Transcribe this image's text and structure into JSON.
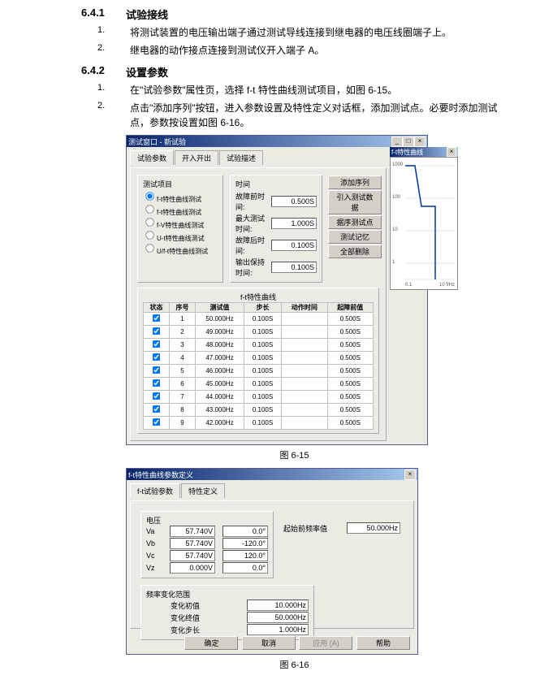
{
  "s641": {
    "no": "6.4.1",
    "title": "试验接线",
    "i1": "将测试装置的电压输出端子通过测试导线连接到继电器的电压线圈端子上。",
    "i2": "继电器的动作接点连接到测试仪开入端子 A。"
  },
  "s642": {
    "no": "6.4.2",
    "title": "设置参数",
    "i1": "在\"试验参数\"属性页，选择 f-t 特性曲线测试项目，如图 6-15。",
    "i2": "点击\"添加序列\"按钮，进入参数设置及特性定义对话框，添加测试点。必要时添加测试点，参数按设置如图 6-16。"
  },
  "cap615": "图 6-15",
  "cap616": "图 6-16",
  "w615": {
    "title": "测试窗口 - 新试验",
    "tab1": "试验参数",
    "tab2": "开入开出",
    "tab3": "试验描述",
    "items_h": "测试项目",
    "time_h": "时间",
    "items": [
      "f-t特性曲线测试",
      "f-t特性曲线测试",
      "f-V特性曲线测试",
      "U-t特性曲线测试",
      "U/f-t特性曲线测试"
    ],
    "lbl1": "故障前时间:",
    "lbl2": "最大测试时间:",
    "lbl3": "故障后时间:",
    "lbl4": "输出保持时间:",
    "v1": "0.500S",
    "v2": "1.000S",
    "v3": "0.100S",
    "v4": "0.100S",
    "btns": [
      "添加序列",
      "引入测试数据",
      "据序测试点",
      "测试记忆",
      "全部删除"
    ],
    "curve_t": "f-t特性曲线",
    "th": [
      "状态",
      "序号",
      "测试值",
      "步长",
      "动作时间",
      "起障前值"
    ],
    "rows": [
      [
        "1",
        "50.000Hz",
        "0.100S",
        "",
        "0.500S"
      ],
      [
        "2",
        "49.000Hz",
        "0.100S",
        "",
        "0.500S"
      ],
      [
        "3",
        "48.000Hz",
        "0.100S",
        "",
        "0.500S"
      ],
      [
        "4",
        "47.000Hz",
        "0.100S",
        "",
        "0.500S"
      ],
      [
        "5",
        "46.000Hz",
        "0.100S",
        "",
        "0.500S"
      ],
      [
        "6",
        "45.000Hz",
        "0.100S",
        "",
        "0.500S"
      ],
      [
        "7",
        "44.000Hz",
        "0.100S",
        "",
        "0.500S"
      ],
      [
        "8",
        "43.000Hz",
        "0.100S",
        "",
        "0.500S"
      ],
      [
        "9",
        "42.000Hz",
        "0.100S",
        "",
        "0.500S"
      ]
    ],
    "chart": {
      "title": "f-t特性曲线",
      "ylabels": [
        "1000",
        "100",
        "10",
        "1"
      ],
      "xmax": "10 f/Hz",
      "xmin": "0.1",
      "axis_stroke": "#333",
      "line": "#0033aa"
    }
  },
  "w616": {
    "title": "f-t特性曲线参数定义",
    "tab1": "f-t试验参数",
    "tab2": "特性定义",
    "volt_h": "电压",
    "rows": [
      {
        "n": "Va",
        "v": "57.740V",
        "a": "0.0°"
      },
      {
        "n": "Vb",
        "v": "57.740V",
        "a": "-120.0°"
      },
      {
        "n": "Vc",
        "v": "57.740V",
        "a": "120.0°"
      },
      {
        "n": "Vz",
        "v": "0.000V",
        "a": "0.0°"
      }
    ],
    "freq_l": "起始前频率值",
    "freq_v": "50.000Hz",
    "range_h": "频率变化范围",
    "r1l": "变化初值",
    "r1v": "10.000Hz",
    "r2l": "变化终值",
    "r2v": "50.000Hz",
    "r3l": "变化步长",
    "r3v": "1.000Hz",
    "ok": "确定",
    "cancel": "取消",
    "apply": "应用 (A)",
    "help": "帮助"
  }
}
